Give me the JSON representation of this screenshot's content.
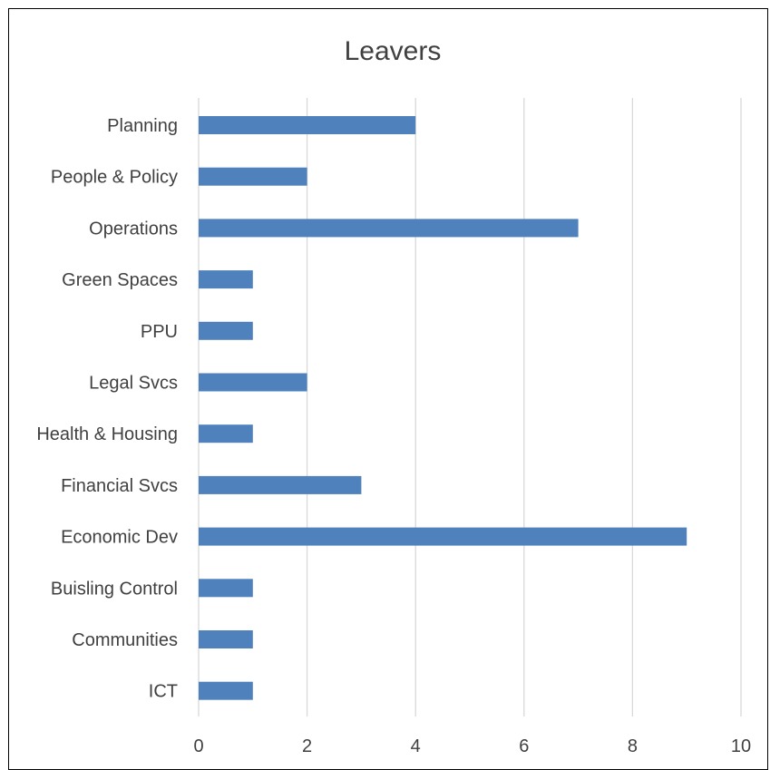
{
  "chart_data": {
    "type": "bar",
    "orientation": "horizontal",
    "title": "Leavers",
    "categories": [
      "Planning",
      "People & Policy",
      "Operations",
      "Green Spaces",
      "PPU",
      "Legal Svcs",
      "Health & Housing",
      "Financial Svcs",
      "Economic Dev",
      "Buisling Control",
      "Communities",
      "ICT"
    ],
    "values": [
      4,
      2,
      7,
      1,
      1,
      2,
      1,
      3,
      9,
      1,
      1,
      1
    ],
    "xlim": [
      0,
      10
    ],
    "xticks": [
      0,
      2,
      4,
      6,
      8,
      10
    ],
    "grid": true,
    "legend": "none",
    "bar_color": "#4f81bd",
    "grid_color": "#d9d9d9",
    "text_color": "#404040"
  }
}
